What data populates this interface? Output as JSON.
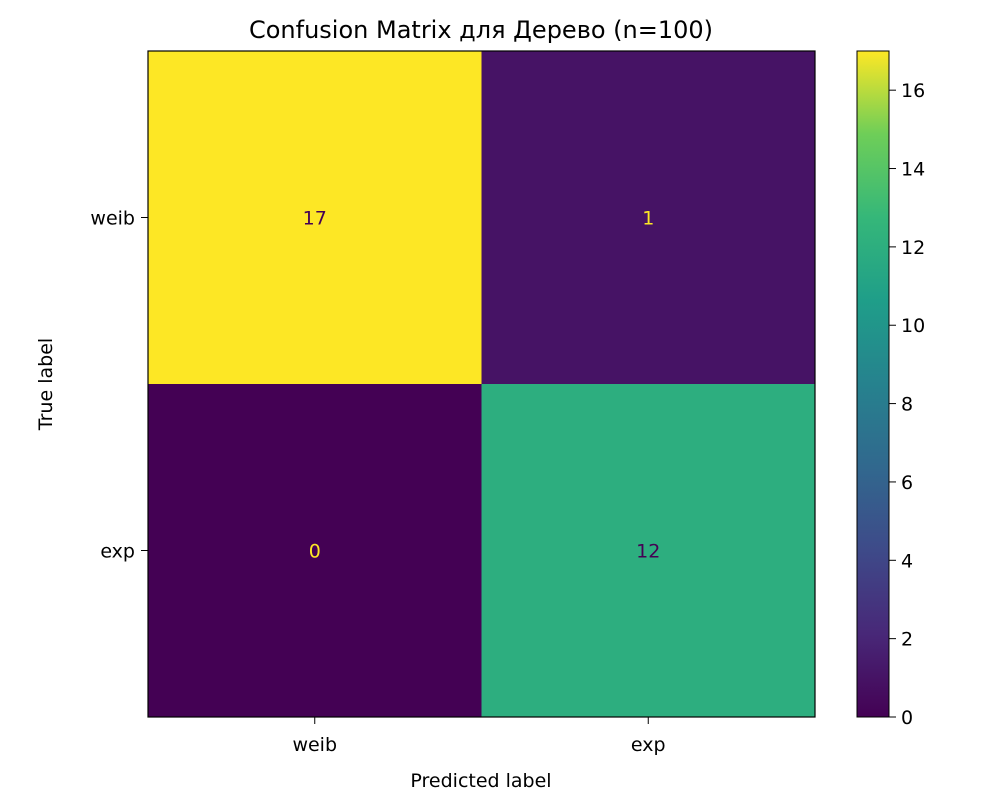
{
  "chart_data": {
    "type": "heatmap",
    "title": "Confusion Matrix для Дерево (n=100)",
    "xlabel": "Predicted label",
    "ylabel": "True label",
    "x_categories": [
      "weib",
      "exp"
    ],
    "y_categories": [
      "weib",
      "exp"
    ],
    "values": [
      [
        17,
        1
      ],
      [
        0,
        12
      ]
    ],
    "colormap": "viridis",
    "colorbar": {
      "min": 0,
      "max": 17,
      "ticks": [
        0,
        2,
        4,
        6,
        8,
        10,
        12,
        14,
        16
      ],
      "position": "right"
    },
    "grid": false
  }
}
